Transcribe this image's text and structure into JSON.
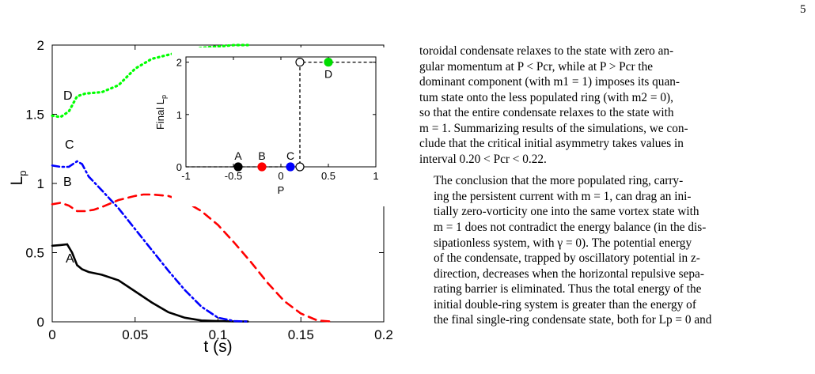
{
  "page_number": "5",
  "figure": {
    "main": {
      "ylabel": "L",
      "ylabel_sub": "p",
      "xlabel": "t (s)",
      "yticks": [
        "0",
        "0.5",
        "1",
        "1.5",
        "2"
      ],
      "xticks": [
        "0",
        "0.05",
        "0.1",
        "0.15",
        "0.2"
      ],
      "curve_labels": [
        "A",
        "B",
        "C",
        "D"
      ]
    },
    "inset": {
      "ylabel": "Final L",
      "ylabel_sub": "p",
      "xlabel": "P",
      "yticks": [
        "0",
        "1",
        "2"
      ],
      "xticks": [
        "-1",
        "-0.5",
        "0",
        "0.5",
        "1"
      ],
      "point_labels": [
        "A",
        "B",
        "C",
        "D"
      ]
    }
  },
  "chart_data": [
    {
      "type": "line",
      "xlabel": "t (s)",
      "ylabel": "Lp",
      "xlim": [
        0,
        0.2
      ],
      "ylim": [
        0,
        2
      ],
      "series": [
        {
          "name": "A",
          "color": "#000000",
          "style": "solid",
          "x": [
            0,
            0.005,
            0.009,
            0.012,
            0.015,
            0.018,
            0.022,
            0.03,
            0.04,
            0.05,
            0.06,
            0.07,
            0.08,
            0.09,
            0.1,
            0.11,
            0.118
          ],
          "y": [
            0.55,
            0.555,
            0.56,
            0.5,
            0.41,
            0.38,
            0.36,
            0.34,
            0.3,
            0.22,
            0.14,
            0.07,
            0.03,
            0.01,
            0.005,
            0.003,
            0.002
          ]
        },
        {
          "name": "B",
          "color": "#ff0000",
          "style": "dashed",
          "x": [
            0,
            0.005,
            0.01,
            0.015,
            0.02,
            0.025,
            0.03,
            0.04,
            0.05,
            0.055,
            0.06,
            0.07,
            0.08,
            0.09,
            0.1,
            0.11,
            0.12,
            0.13,
            0.14,
            0.15,
            0.16,
            0.168
          ],
          "y": [
            0.85,
            0.86,
            0.84,
            0.8,
            0.8,
            0.81,
            0.83,
            0.88,
            0.91,
            0.92,
            0.92,
            0.91,
            0.87,
            0.8,
            0.7,
            0.57,
            0.43,
            0.28,
            0.15,
            0.06,
            0.01,
            0.003
          ]
        },
        {
          "name": "C",
          "color": "#0000ff",
          "style": "dash-dot",
          "x": [
            0,
            0.005,
            0.01,
            0.015,
            0.018,
            0.022,
            0.03,
            0.04,
            0.05,
            0.06,
            0.07,
            0.08,
            0.09,
            0.1,
            0.11,
            0.118
          ],
          "y": [
            1.13,
            1.12,
            1.12,
            1.16,
            1.14,
            1.05,
            0.95,
            0.82,
            0.67,
            0.52,
            0.37,
            0.23,
            0.11,
            0.03,
            0.005,
            0.002
          ]
        },
        {
          "name": "D",
          "color": "#00ff00",
          "style": "dotted",
          "x": [
            0,
            0.005,
            0.01,
            0.015,
            0.02,
            0.03,
            0.04,
            0.05,
            0.06,
            0.07,
            0.08,
            0.09,
            0.1,
            0.11,
            0.118
          ],
          "y": [
            1.49,
            1.48,
            1.52,
            1.63,
            1.65,
            1.66,
            1.71,
            1.83,
            1.9,
            1.93,
            1.96,
            1.98,
            1.99,
            2.0,
            2.0
          ]
        }
      ]
    },
    {
      "type": "scatter",
      "xlabel": "P",
      "ylabel": "Final Lp",
      "xlim": [
        -1,
        1
      ],
      "ylim": [
        0,
        2.1
      ],
      "points": [
        {
          "label": "A",
          "x": -0.45,
          "y": 0,
          "color": "#000000",
          "filled": true
        },
        {
          "label": "B",
          "x": -0.2,
          "y": 0,
          "color": "#ff0000",
          "filled": true
        },
        {
          "label": "C",
          "x": 0.1,
          "y": 0,
          "color": "#0000ff",
          "filled": true
        },
        {
          "label": "",
          "x": 0.2,
          "y": 0,
          "color": "#000000",
          "filled": false
        },
        {
          "label": "",
          "x": 0.2,
          "y": 2,
          "color": "#000000",
          "filled": false
        },
        {
          "label": "D",
          "x": 0.5,
          "y": 2,
          "color": "#00dd00",
          "filled": true
        }
      ],
      "step_line": {
        "x": [
          -1,
          0.2,
          0.2,
          1
        ],
        "y": [
          0,
          0,
          2,
          2
        ],
        "style": "dashed"
      }
    }
  ],
  "text": {
    "paragraph1": [
      "toroidal condensate relaxes to the state with zero an-",
      "gular momentum at P < Pcr, while at P > Pcr the",
      "dominant component (with m1 = 1) imposes its quan-",
      "tum state onto the less populated ring (with m2 = 0),",
      "so that the entire condensate relaxes to the state with",
      "m = 1. Summarizing results of the simulations, we con-",
      "clude that the critical initial asymmetry takes values in",
      "interval 0.20 < Pcr < 0.22."
    ],
    "paragraph2": [
      "The conclusion that the more populated ring, carry-",
      "ing the persistent current with m = 1, can drag an ini-",
      "tially zero-vorticity one into the same vortex state with",
      "m = 1 does not contradict the energy balance (in the dis-",
      "sipationless system, with γ = 0). The potential energy",
      "of the condensate, trapped by oscillatory potential in z-",
      "direction, decreases when the horizontal repulsive sepa-",
      "rating barrier is eliminated. Thus the total energy of the",
      "initial double-ring system is greater than the energy of",
      "the final single-ring condensate state, both for Lp = 0 and"
    ]
  }
}
